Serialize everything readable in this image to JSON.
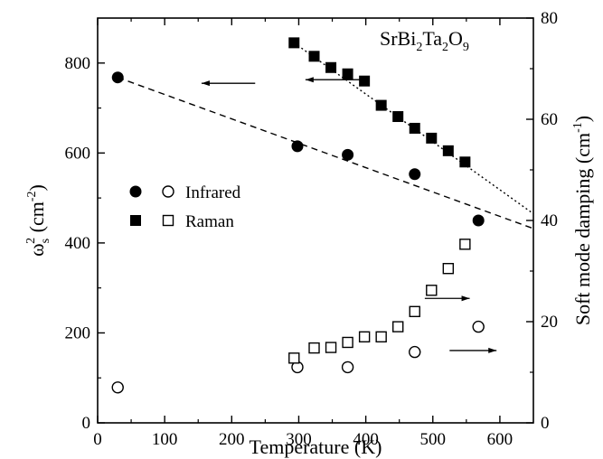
{
  "chart_data": {
    "type": "scatter",
    "title": "",
    "annotation": {
      "text": "SrBi",
      "parts": [
        {
          "t": "SrBi",
          "sub": false
        },
        {
          "t": "2",
          "sub": true
        },
        {
          "t": "Ta",
          "sub": false
        },
        {
          "t": "2",
          "sub": true
        },
        {
          "t": "O",
          "sub": false
        },
        {
          "t": "9",
          "sub": true
        }
      ]
    },
    "xlabel": "Temperature  (K)",
    "ylabel_left": {
      "omega": "ω",
      "sub": "s",
      "sup": "2",
      "unit": " (cm",
      "unit_sup": "-2",
      "close": ")"
    },
    "ylabel_right": {
      "text": "Soft mode damping  (cm",
      "sup": "-1",
      "close": ")"
    },
    "xlim": [
      0,
      650
    ],
    "ylim_left": [
      0,
      900
    ],
    "ylim_right": [
      0,
      80
    ],
    "x_ticks": [
      0,
      100,
      200,
      300,
      400,
      500,
      600
    ],
    "y_left_ticks": [
      0,
      200,
      400,
      600,
      800
    ],
    "y_right_ticks": [
      0,
      20,
      40,
      60,
      80
    ],
    "legend": {
      "placement": "center-left",
      "rows": [
        {
          "filled": "circle",
          "open": "circle",
          "label": "Infrared"
        },
        {
          "filled": "square",
          "open": "square",
          "label": "Raman"
        }
      ]
    },
    "series": [
      {
        "name": "Infrared",
        "axis": "left",
        "marker": "circle-filled",
        "x": [
          30,
          298,
          373,
          473,
          568
        ],
        "y": [
          768,
          615,
          596,
          553,
          450
        ]
      },
      {
        "name": "Raman",
        "axis": "left",
        "marker": "square-filled",
        "x": [
          293,
          323,
          348,
          373,
          398,
          423,
          448,
          473,
          498,
          523,
          548
        ],
        "y": [
          845,
          815,
          790,
          776,
          760,
          706,
          681,
          655,
          633,
          605,
          580
        ]
      },
      {
        "name": "Infrared",
        "axis": "right",
        "marker": "circle-open",
        "x": [
          30,
          298,
          373,
          473,
          568
        ],
        "y": [
          7,
          11,
          11,
          14,
          19
        ]
      },
      {
        "name": "Raman",
        "axis": "right",
        "marker": "square-open",
        "x": [
          293,
          323,
          348,
          373,
          398,
          423,
          448,
          473,
          498,
          523,
          548
        ],
        "y": [
          12.8,
          14.8,
          14.9,
          15.9,
          17.0,
          17.0,
          19.0,
          22.0,
          26.2,
          30.5,
          35.3
        ]
      }
    ],
    "fit_lines": [
      {
        "axis": "left",
        "style": "dashed",
        "x": [
          30,
          650
        ],
        "y": [
          768,
          432
        ]
      },
      {
        "axis": "left",
        "style": "dotted",
        "x": [
          293,
          650
        ],
        "y": [
          845,
          465
        ]
      }
    ],
    "arrows": [
      {
        "direction": "left",
        "axis": "left",
        "x_from": 235,
        "x_to": 155,
        "y": 755
      },
      {
        "direction": "left",
        "axis": "left",
        "x_from": 395,
        "x_to": 310,
        "y": 763
      },
      {
        "direction": "right",
        "axis": "right",
        "x_from": 488,
        "x_to": 555,
        "y": 24.6
      },
      {
        "direction": "right",
        "axis": "right",
        "x_from": 525,
        "x_to": 595,
        "y": 14.3
      }
    ]
  }
}
